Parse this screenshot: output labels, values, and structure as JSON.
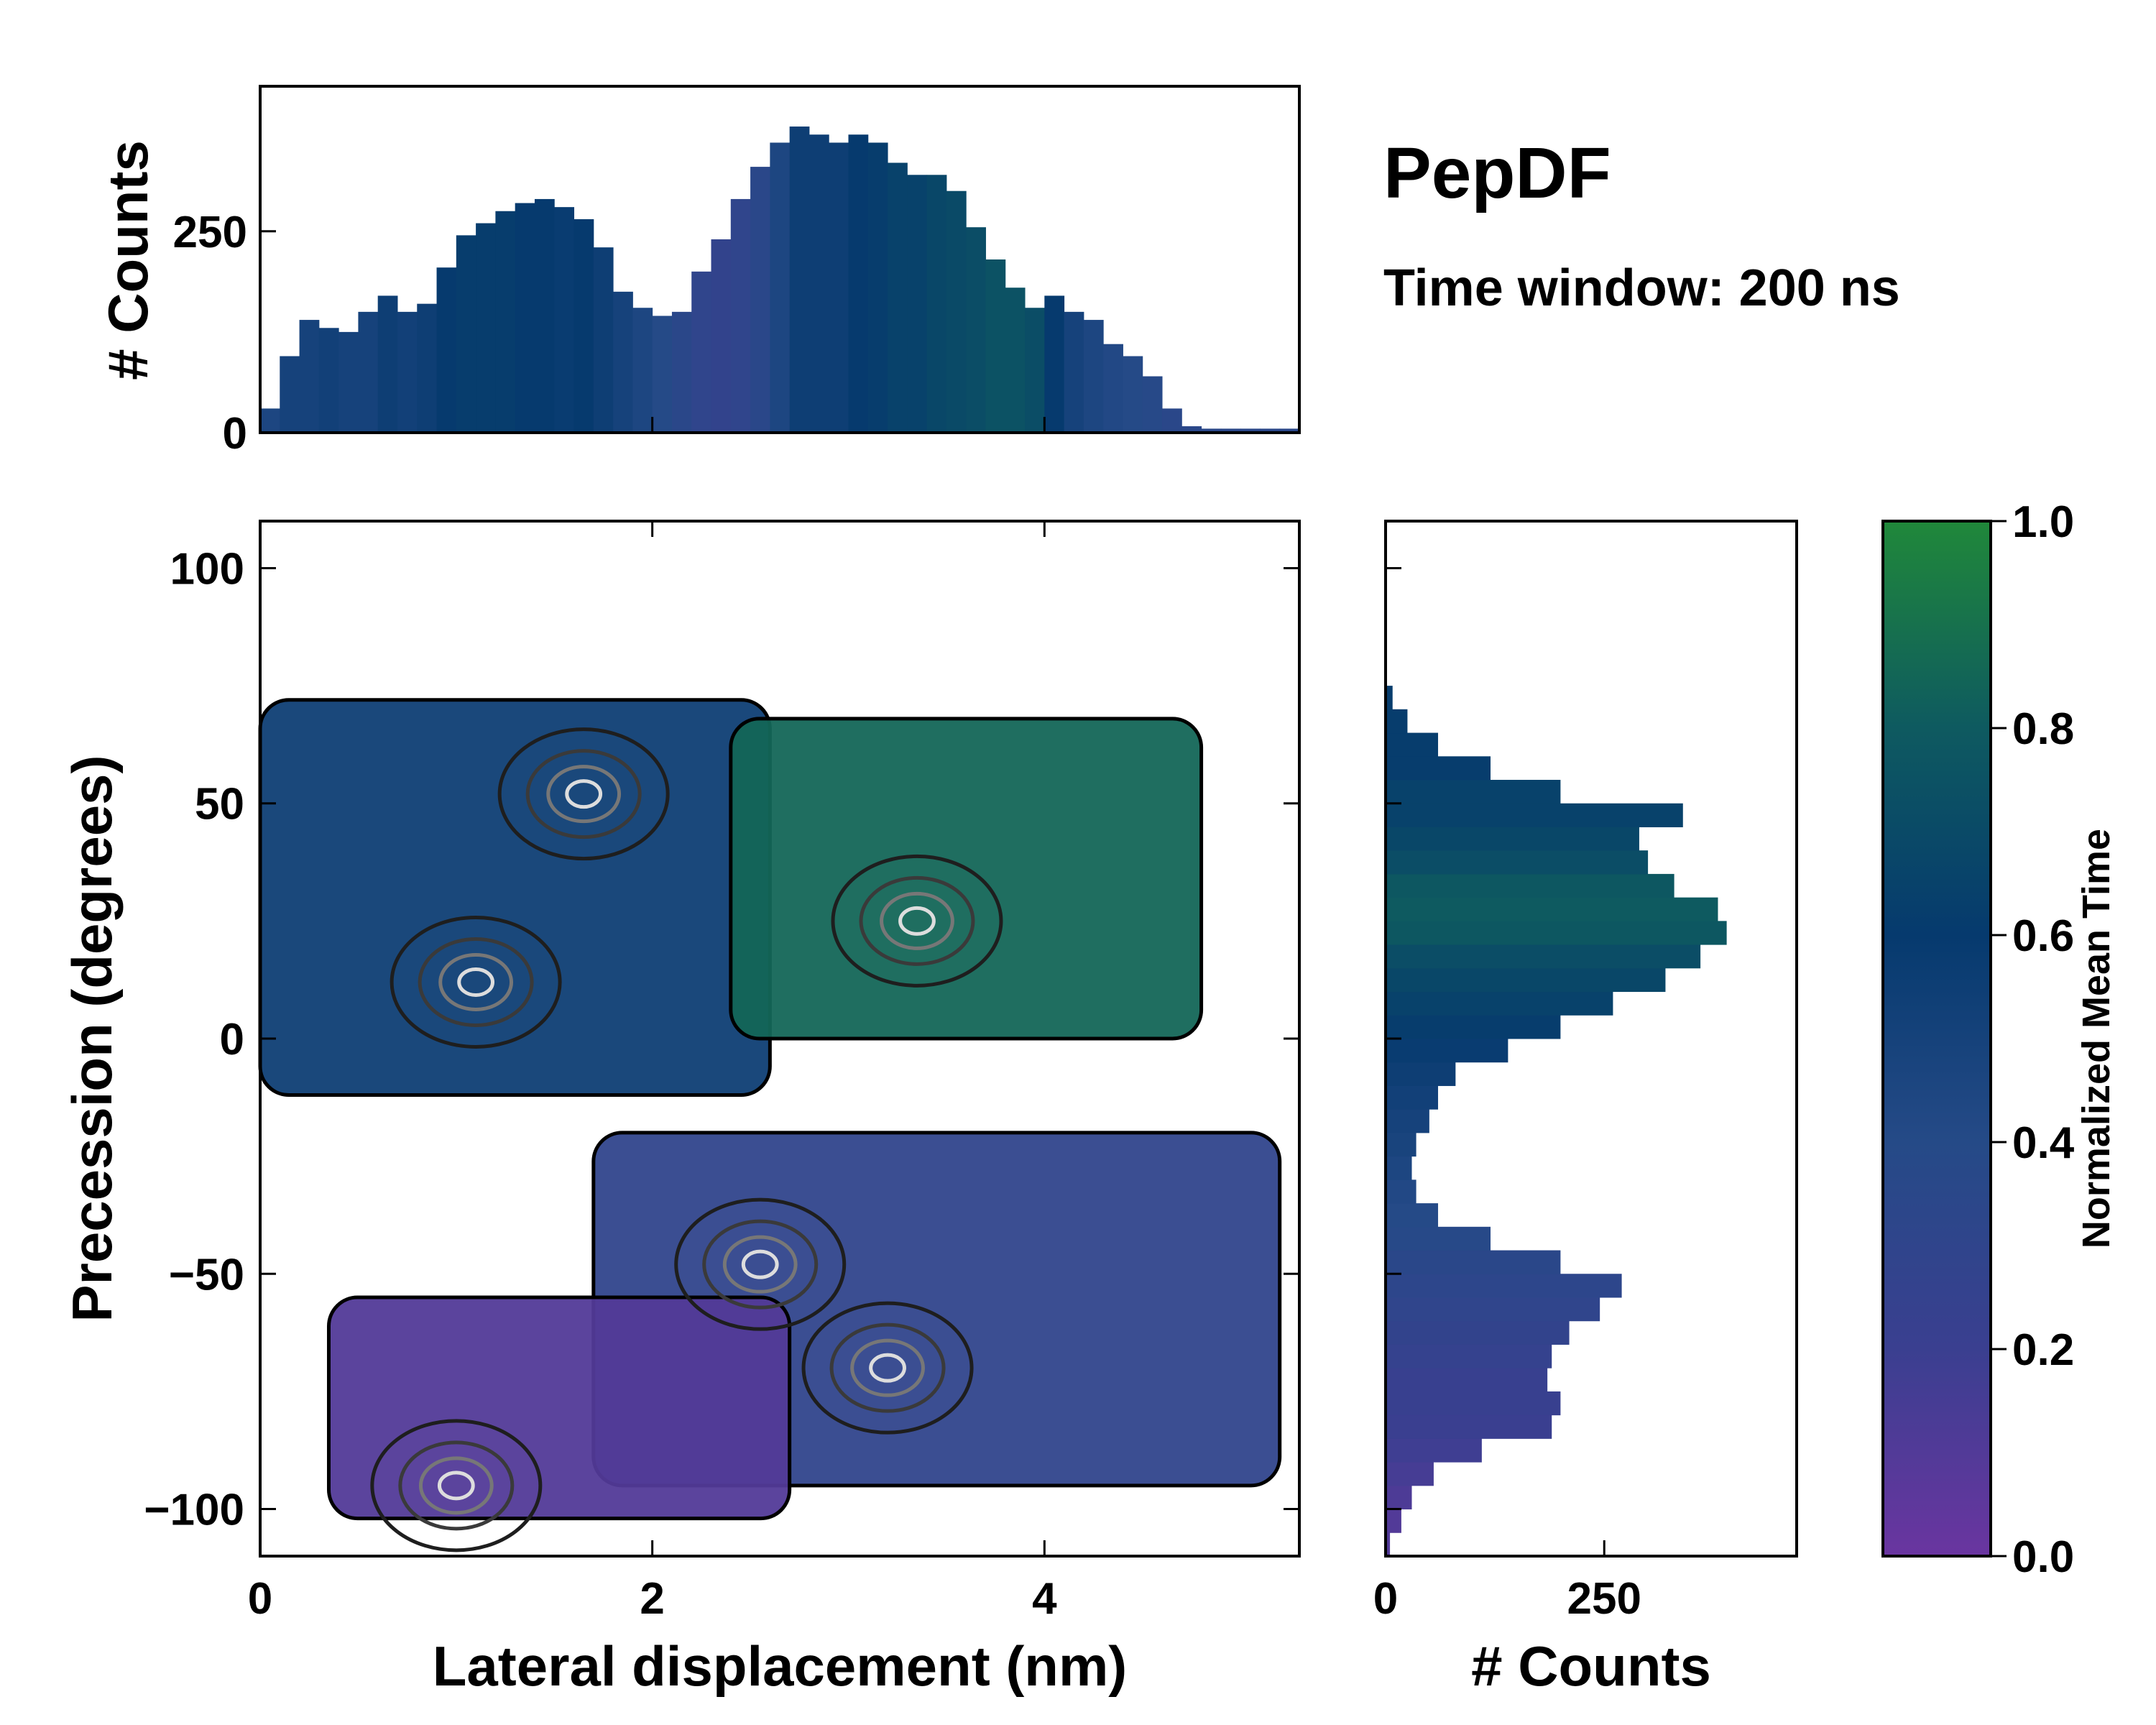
{
  "chart_data": [
    {
      "id": "top_histogram",
      "type": "bar",
      "orientation": "vertical",
      "title": "PepDF",
      "subtitle": "Time window: 200 ns",
      "xlabel": "",
      "ylabel": "# Counts",
      "xlim": [
        0,
        5.3
      ],
      "ylim": [
        0,
        430
      ],
      "yticks": [
        0,
        250
      ],
      "ytick_labels": [
        "0",
        "250"
      ],
      "bin_centers": [
        0.05,
        0.15,
        0.25,
        0.35,
        0.45,
        0.55,
        0.65,
        0.75,
        0.85,
        0.95,
        1.05,
        1.15,
        1.25,
        1.35,
        1.45,
        1.55,
        1.65,
        1.75,
        1.85,
        1.95,
        2.05,
        2.15,
        2.25,
        2.35,
        2.45,
        2.55,
        2.65,
        2.75,
        2.85,
        2.95,
        3.05,
        3.15,
        3.25,
        3.35,
        3.45,
        3.55,
        3.65,
        3.75,
        3.85,
        3.95,
        4.05,
        4.15,
        4.25,
        4.35,
        4.45,
        4.55,
        4.65,
        4.75,
        4.85,
        4.95,
        5.05,
        5.15,
        5.25
      ],
      "values": [
        30,
        95,
        140,
        130,
        125,
        150,
        170,
        150,
        160,
        205,
        245,
        260,
        275,
        285,
        290,
        280,
        265,
        230,
        175,
        155,
        145,
        150,
        200,
        240,
        290,
        330,
        360,
        380,
        370,
        360,
        370,
        360,
        335,
        320,
        320,
        300,
        255,
        215,
        180,
        155,
        170,
        150,
        140,
        110,
        95,
        70,
        30,
        8,
        5,
        5,
        5,
        5,
        5
      ],
      "bar_color_time": [
        0.45,
        0.5,
        0.5,
        0.52,
        0.5,
        0.5,
        0.55,
        0.52,
        0.55,
        0.6,
        0.62,
        0.62,
        0.62,
        0.6,
        0.6,
        0.58,
        0.6,
        0.55,
        0.5,
        0.45,
        0.4,
        0.35,
        0.3,
        0.28,
        0.3,
        0.35,
        0.45,
        0.55,
        0.55,
        0.55,
        0.6,
        0.62,
        0.65,
        0.65,
        0.68,
        0.7,
        0.72,
        0.75,
        0.75,
        0.72,
        0.6,
        0.5,
        0.45,
        0.42,
        0.4,
        0.38,
        0.35,
        0.35,
        0.35,
        0.35,
        0.35,
        0.35,
        0.35
      ]
    },
    {
      "id": "main_heatmap",
      "type": "heatmap",
      "xlabel": "Lateral displacement (nm)",
      "ylabel": "Precession (degrees)",
      "xlim": [
        0,
        5.3
      ],
      "ylim": [
        -110,
        110
      ],
      "xticks": [
        0,
        2,
        4
      ],
      "xtick_labels": [
        "0",
        "2",
        "4"
      ],
      "yticks": [
        -100,
        -50,
        0,
        50,
        100
      ],
      "ytick_labels": [
        "−100",
        "−50",
        "0",
        "50",
        "100"
      ],
      "colored_regions": [
        {
          "name": "upper-left",
          "x": [
            0,
            2.6
          ],
          "y": [
            -12,
            72
          ],
          "mean_time": 0.55
        },
        {
          "name": "upper-right",
          "x": [
            2.4,
            4.8
          ],
          "y": [
            0,
            68
          ],
          "mean_time": 0.85
        },
        {
          "name": "lower-middle",
          "x": [
            1.7,
            5.2
          ],
          "y": [
            -95,
            -20
          ],
          "mean_time": 0.3
        },
        {
          "name": "lower-left",
          "x": [
            0.35,
            2.7
          ],
          "y": [
            -102,
            -55
          ],
          "mean_time": 0.1
        }
      ],
      "density_peaks": [
        {
          "x": 1.65,
          "y": 52
        },
        {
          "x": 1.1,
          "y": 12
        },
        {
          "x": 3.35,
          "y": 25
        },
        {
          "x": 2.55,
          "y": -48
        },
        {
          "x": 3.2,
          "y": -70
        },
        {
          "x": 1.0,
          "y": -95
        }
      ]
    },
    {
      "id": "right_histogram",
      "type": "bar",
      "orientation": "horizontal",
      "xlabel": "# Counts",
      "ylabel": "",
      "xlim": [
        0,
        470
      ],
      "ylim": [
        -110,
        110
      ],
      "xticks": [
        0,
        250
      ],
      "xtick_labels": [
        "0",
        "250"
      ],
      "bin_centers": [
        -107.5,
        -102.5,
        -97.5,
        -92.5,
        -87.5,
        -82.5,
        -77.5,
        -72.5,
        -67.5,
        -62.5,
        -57.5,
        -52.5,
        -47.5,
        -42.5,
        -37.5,
        -32.5,
        -27.5,
        -22.5,
        -17.5,
        -12.5,
        -7.5,
        -2.5,
        2.5,
        7.5,
        12.5,
        17.5,
        22.5,
        27.5,
        32.5,
        37.5,
        42.5,
        47.5,
        52.5,
        57.5,
        62.5,
        67.5,
        72.5
      ],
      "values": [
        5,
        18,
        30,
        55,
        110,
        190,
        200,
        185,
        190,
        210,
        245,
        270,
        200,
        120,
        60,
        35,
        30,
        35,
        50,
        60,
        80,
        140,
        200,
        260,
        320,
        360,
        390,
        380,
        330,
        300,
        290,
        340,
        200,
        120,
        60,
        25,
        8
      ],
      "bar_color_time": [
        0.1,
        0.1,
        0.12,
        0.15,
        0.18,
        0.2,
        0.22,
        0.22,
        0.25,
        0.28,
        0.3,
        0.32,
        0.35,
        0.38,
        0.4,
        0.42,
        0.45,
        0.48,
        0.5,
        0.52,
        0.55,
        0.58,
        0.62,
        0.65,
        0.68,
        0.72,
        0.78,
        0.8,
        0.78,
        0.72,
        0.68,
        0.65,
        0.65,
        0.62,
        0.62,
        0.62,
        0.62
      ]
    },
    {
      "id": "colorbar",
      "type": "colorbar",
      "label": "Normalized Mean Time",
      "range": [
        0,
        1
      ],
      "ticks": [
        0.0,
        0.2,
        0.4,
        0.6,
        0.8,
        1.0
      ],
      "tick_labels": [
        "0.0",
        "0.2",
        "0.4",
        "0.6",
        "0.8",
        "1.0"
      ],
      "colormap_stops": [
        "#6a35a0",
        "#3a3f90",
        "#254a87",
        "#063a6e",
        "#0e5a60",
        "#20883a"
      ]
    }
  ]
}
